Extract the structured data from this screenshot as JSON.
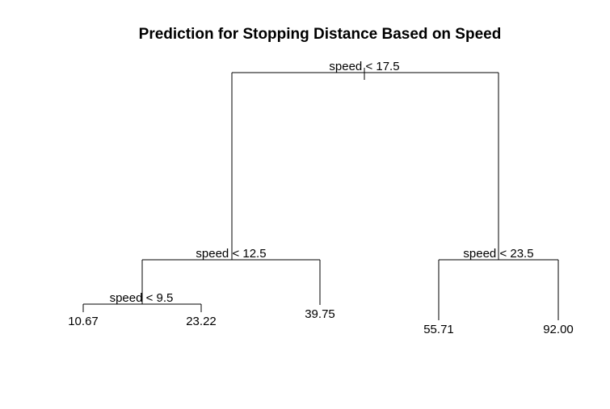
{
  "title": "Prediction for Stopping Distance Based on Speed",
  "tree": {
    "root": {
      "split": "speed < 17.5"
    },
    "left": {
      "split": "speed < 12.5"
    },
    "right": {
      "split": "speed < 23.5"
    },
    "left_left": {
      "split": "speed < 9.5"
    },
    "leaves": {
      "ll_l": "10.67",
      "ll_r": "23.22",
      "l_r": "39.75",
      "r_l": "55.71",
      "r_r": "92.00"
    }
  }
}
